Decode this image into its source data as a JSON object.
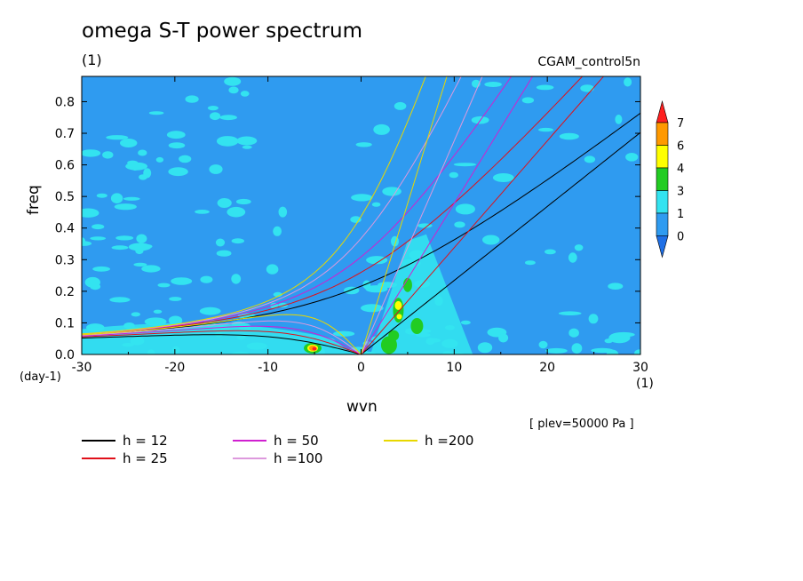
{
  "header": {
    "title": "omega S-T power spectrum",
    "title_unit": "(1)",
    "run_name": "CGAM_control5n"
  },
  "axes": {
    "xlabel": "wvn",
    "ylabel": "freq",
    "x_unit": "(1)",
    "y_unit": "(day-1)",
    "level_note": "[ plev=50000 Pa ]"
  },
  "chart_data": {
    "type": "heatmap",
    "title": "omega S-T power spectrum",
    "xlabel": "wvn",
    "ylabel": "freq",
    "xlim": [
      -30,
      30
    ],
    "ylim": [
      0,
      0.88
    ],
    "x_ticks": [
      -30,
      -20,
      -10,
      0,
      10,
      20,
      30
    ],
    "y_ticks": [
      0.0,
      0.1,
      0.2,
      0.3,
      0.4,
      0.5,
      0.6,
      0.7,
      0.8
    ],
    "x_tick_labels": [
      "-30",
      "-20",
      "-10",
      "0",
      "10",
      "20",
      "30"
    ],
    "y_tick_labels": [
      "0.0",
      "0.1",
      "0.2",
      "0.3",
      "0.4",
      "0.5",
      "0.6",
      "0.7",
      "0.8"
    ],
    "colorbar": {
      "levels": [
        0,
        1,
        3,
        4,
        6,
        7
      ],
      "labels": [
        "0",
        "1",
        "3",
        "4",
        "6",
        "7"
      ],
      "colors": [
        "#1e6fe6",
        "#2f9bf0",
        "#33e3f0",
        "#22cc22",
        "#ffff00",
        "#ff9900",
        "#ff2020"
      ]
    },
    "features": {
      "background_level": "0-1",
      "kelvin_band": {
        "k_range": [
          2,
          9
        ],
        "freq_range": [
          0,
          0.25
        ],
        "max_level": "6-7"
      },
      "rossby_peak": {
        "k": -5,
        "freq": 0.02,
        "max_level": "6-7"
      }
    },
    "dispersion_curves": [
      {
        "name": "h = 12",
        "h": 12,
        "color": "#000000"
      },
      {
        "name": "h = 25",
        "h": 25,
        "color": "#e0101a"
      },
      {
        "name": "h = 50",
        "h": 50,
        "color": "#d020d0"
      },
      {
        "name": "h =100",
        "h": 100,
        "color": "#dd99dd"
      },
      {
        "name": "h =200",
        "h": 200,
        "color": "#e8d800"
      }
    ]
  },
  "legend": [
    {
      "label": "h = 12",
      "color": "#000000"
    },
    {
      "label": "h = 25",
      "color": "#e0101a"
    },
    {
      "label": "h = 50",
      "color": "#d020d0"
    },
    {
      "label": "h =100",
      "color": "#dd99dd"
    },
    {
      "label": "h =200",
      "color": "#e8d800"
    }
  ]
}
